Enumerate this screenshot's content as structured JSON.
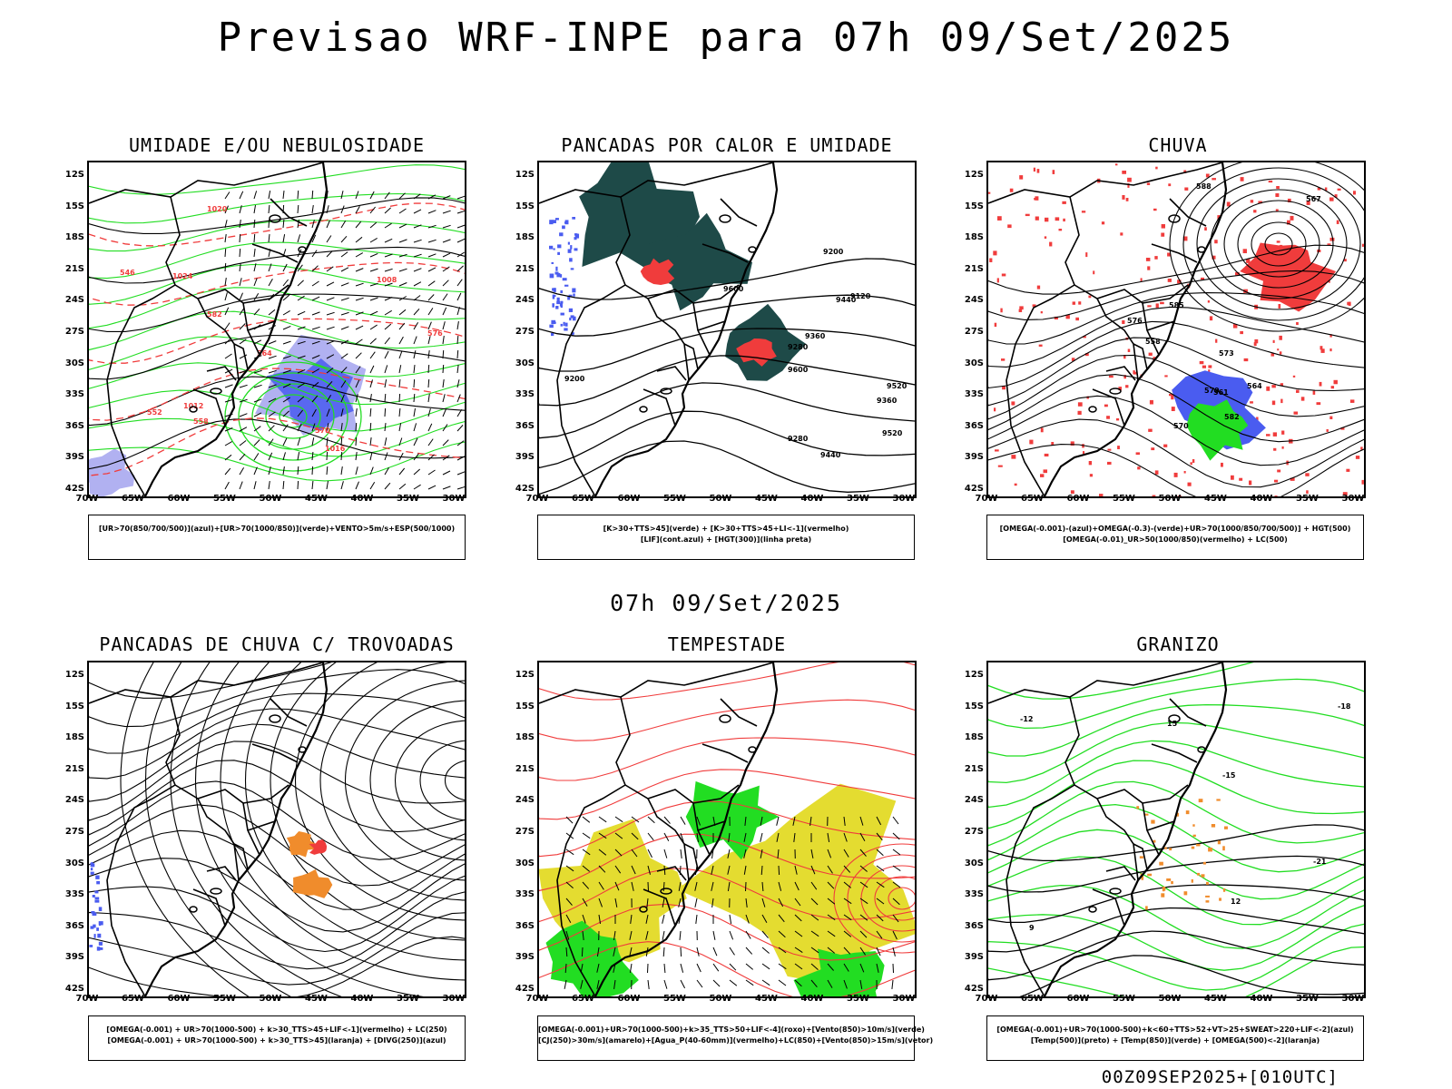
{
  "title": "Previsao WRF-INPE  para 07h 09/Set/2025",
  "mid_title": "07h 09/Set/2025",
  "footer": "00Z09SEP2025+[010UTC]",
  "lat_labels": [
    "12S",
    "15S",
    "18S",
    "21S",
    "24S",
    "27S",
    "30S",
    "33S",
    "36S",
    "39S",
    "42S"
  ],
  "lon_labels": [
    "70W",
    "65W",
    "60W",
    "55W",
    "50W",
    "45W",
    "40W",
    "35W",
    "30W"
  ],
  "colors": {
    "blue": "#4a5cf0",
    "green": "#22dd22",
    "red": "#f03c3c",
    "orange": "#f08c2c",
    "darkteal": "#1e4a48",
    "yellow": "#e4dc30",
    "lightblue": "#a8a8f0"
  },
  "panels": [
    {
      "id": "umidade",
      "title": "UMIDADE E/OU NEBULOSIDADE",
      "legend": [
        "[UR>70(850/700/500)](azul)+[UR>70(1000/850)](verde)+VENTO>5m/s+ESP(500/1000)"
      ],
      "contour_labels": [
        "1016",
        "1020",
        "1012",
        "1024",
        "1008",
        "570",
        "576",
        "582",
        "564",
        "558",
        "552",
        "546"
      ]
    },
    {
      "id": "pancadas_calor",
      "title": "PANCADAS POR CALOR E UMIDADE",
      "legend": [
        "[K>30+TTS>45](verde) + [K>30+TTS>45+LI<-1](vermelho)",
        "[LIF](cont.azul) + [HGT(300)](linha preta)"
      ],
      "contour_labels": [
        "9600",
        "9520",
        "9440",
        "9360",
        "9280",
        "9200",
        "9120",
        "9600",
        "9520",
        "9440",
        "9360",
        "9280",
        "9200"
      ]
    },
    {
      "id": "chuva",
      "title": "CHUVA",
      "legend": [
        "[OMEGA(-0.001)-(azul)+OMEGA(-0.3)-(verde)+UR>70(1000/850/700/500)] + HGT(500)",
        "[OMEGA(-0.01)_UR>50(1000/850)(vermelho) + LC(500)"
      ],
      "contour_labels": [
        "588",
        "585",
        "582",
        "579",
        "576",
        "573",
        "570",
        "567",
        "564",
        "561",
        "558"
      ]
    },
    {
      "id": "trovoadas",
      "title": "PANCADAS DE CHUVA C/ TROVOADAS",
      "legend": [
        "[OMEGA(-0.001) + UR>70(1000-500) + k>30_TTS>45+LIF<-1](vermelho) + LC(250)",
        "[OMEGA(-0.001) + UR>70(1000-500) + k>30_TTS>45](laranja) + [DIVG(250)](azul)"
      ],
      "contour_labels": []
    },
    {
      "id": "tempestade",
      "title": "TEMPESTADE",
      "legend": [
        "[OMEGA(-0.001)+UR>70(1000-500)+k>35_TTS>50+LIF<-4](roxo)+[Vento(850)>10m/s](verde)",
        "[CJ(250)>30m/s](amarelo)+[Agua_P(40-60mm)](vermelho)+LC(850)+[Vento(850)>15m/s](vetor)"
      ],
      "contour_labels": []
    },
    {
      "id": "granizo",
      "title": "GRANIZO",
      "legend": [
        "[OMEGA(-0.001)+UR>70(1000-500)+k<60+TTS>52+VT>25+SWEAT>220+LIF<-2](azul)",
        "[Temp(500)](preto) + [Temp(850)](verde) + [OMEGA(500)<-2](laranja)"
      ],
      "contour_labels": [
        "15",
        "12",
        "9",
        "-18",
        "-21",
        "-15",
        "-12"
      ]
    }
  ]
}
